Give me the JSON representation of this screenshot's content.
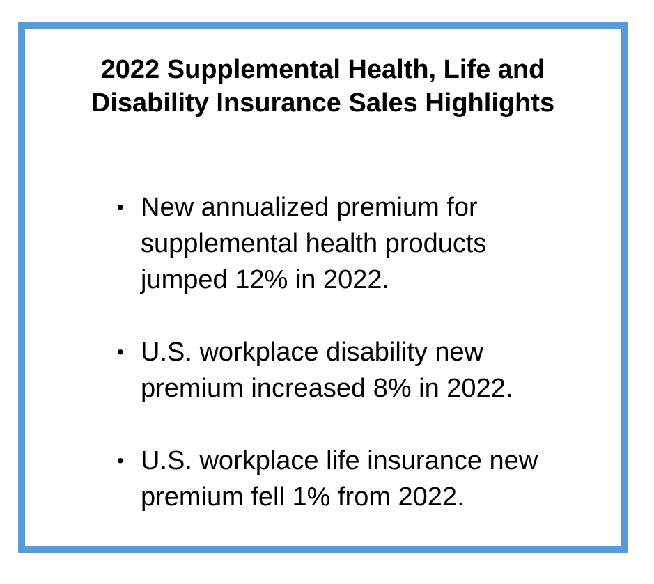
{
  "title": {
    "line1": "2022 Supplemental Health, Life and",
    "line2": "Disability Insurance Sales Highlights"
  },
  "bullets": [
    {
      "lines": [
        "New annualized premium for",
        "supplemental health products",
        "jumped 12% in 2022."
      ]
    },
    {
      "lines": [
        "U.S. workplace disability new",
        "premium increased 8% in 2022."
      ]
    },
    {
      "lines": [
        "U.S. workplace life insurance new",
        "premium fell 1% from 2022."
      ]
    }
  ],
  "colors": {
    "border": "#5b9bd5",
    "text": "#000000",
    "background": "#ffffff"
  },
  "bullet_glyph": "•"
}
